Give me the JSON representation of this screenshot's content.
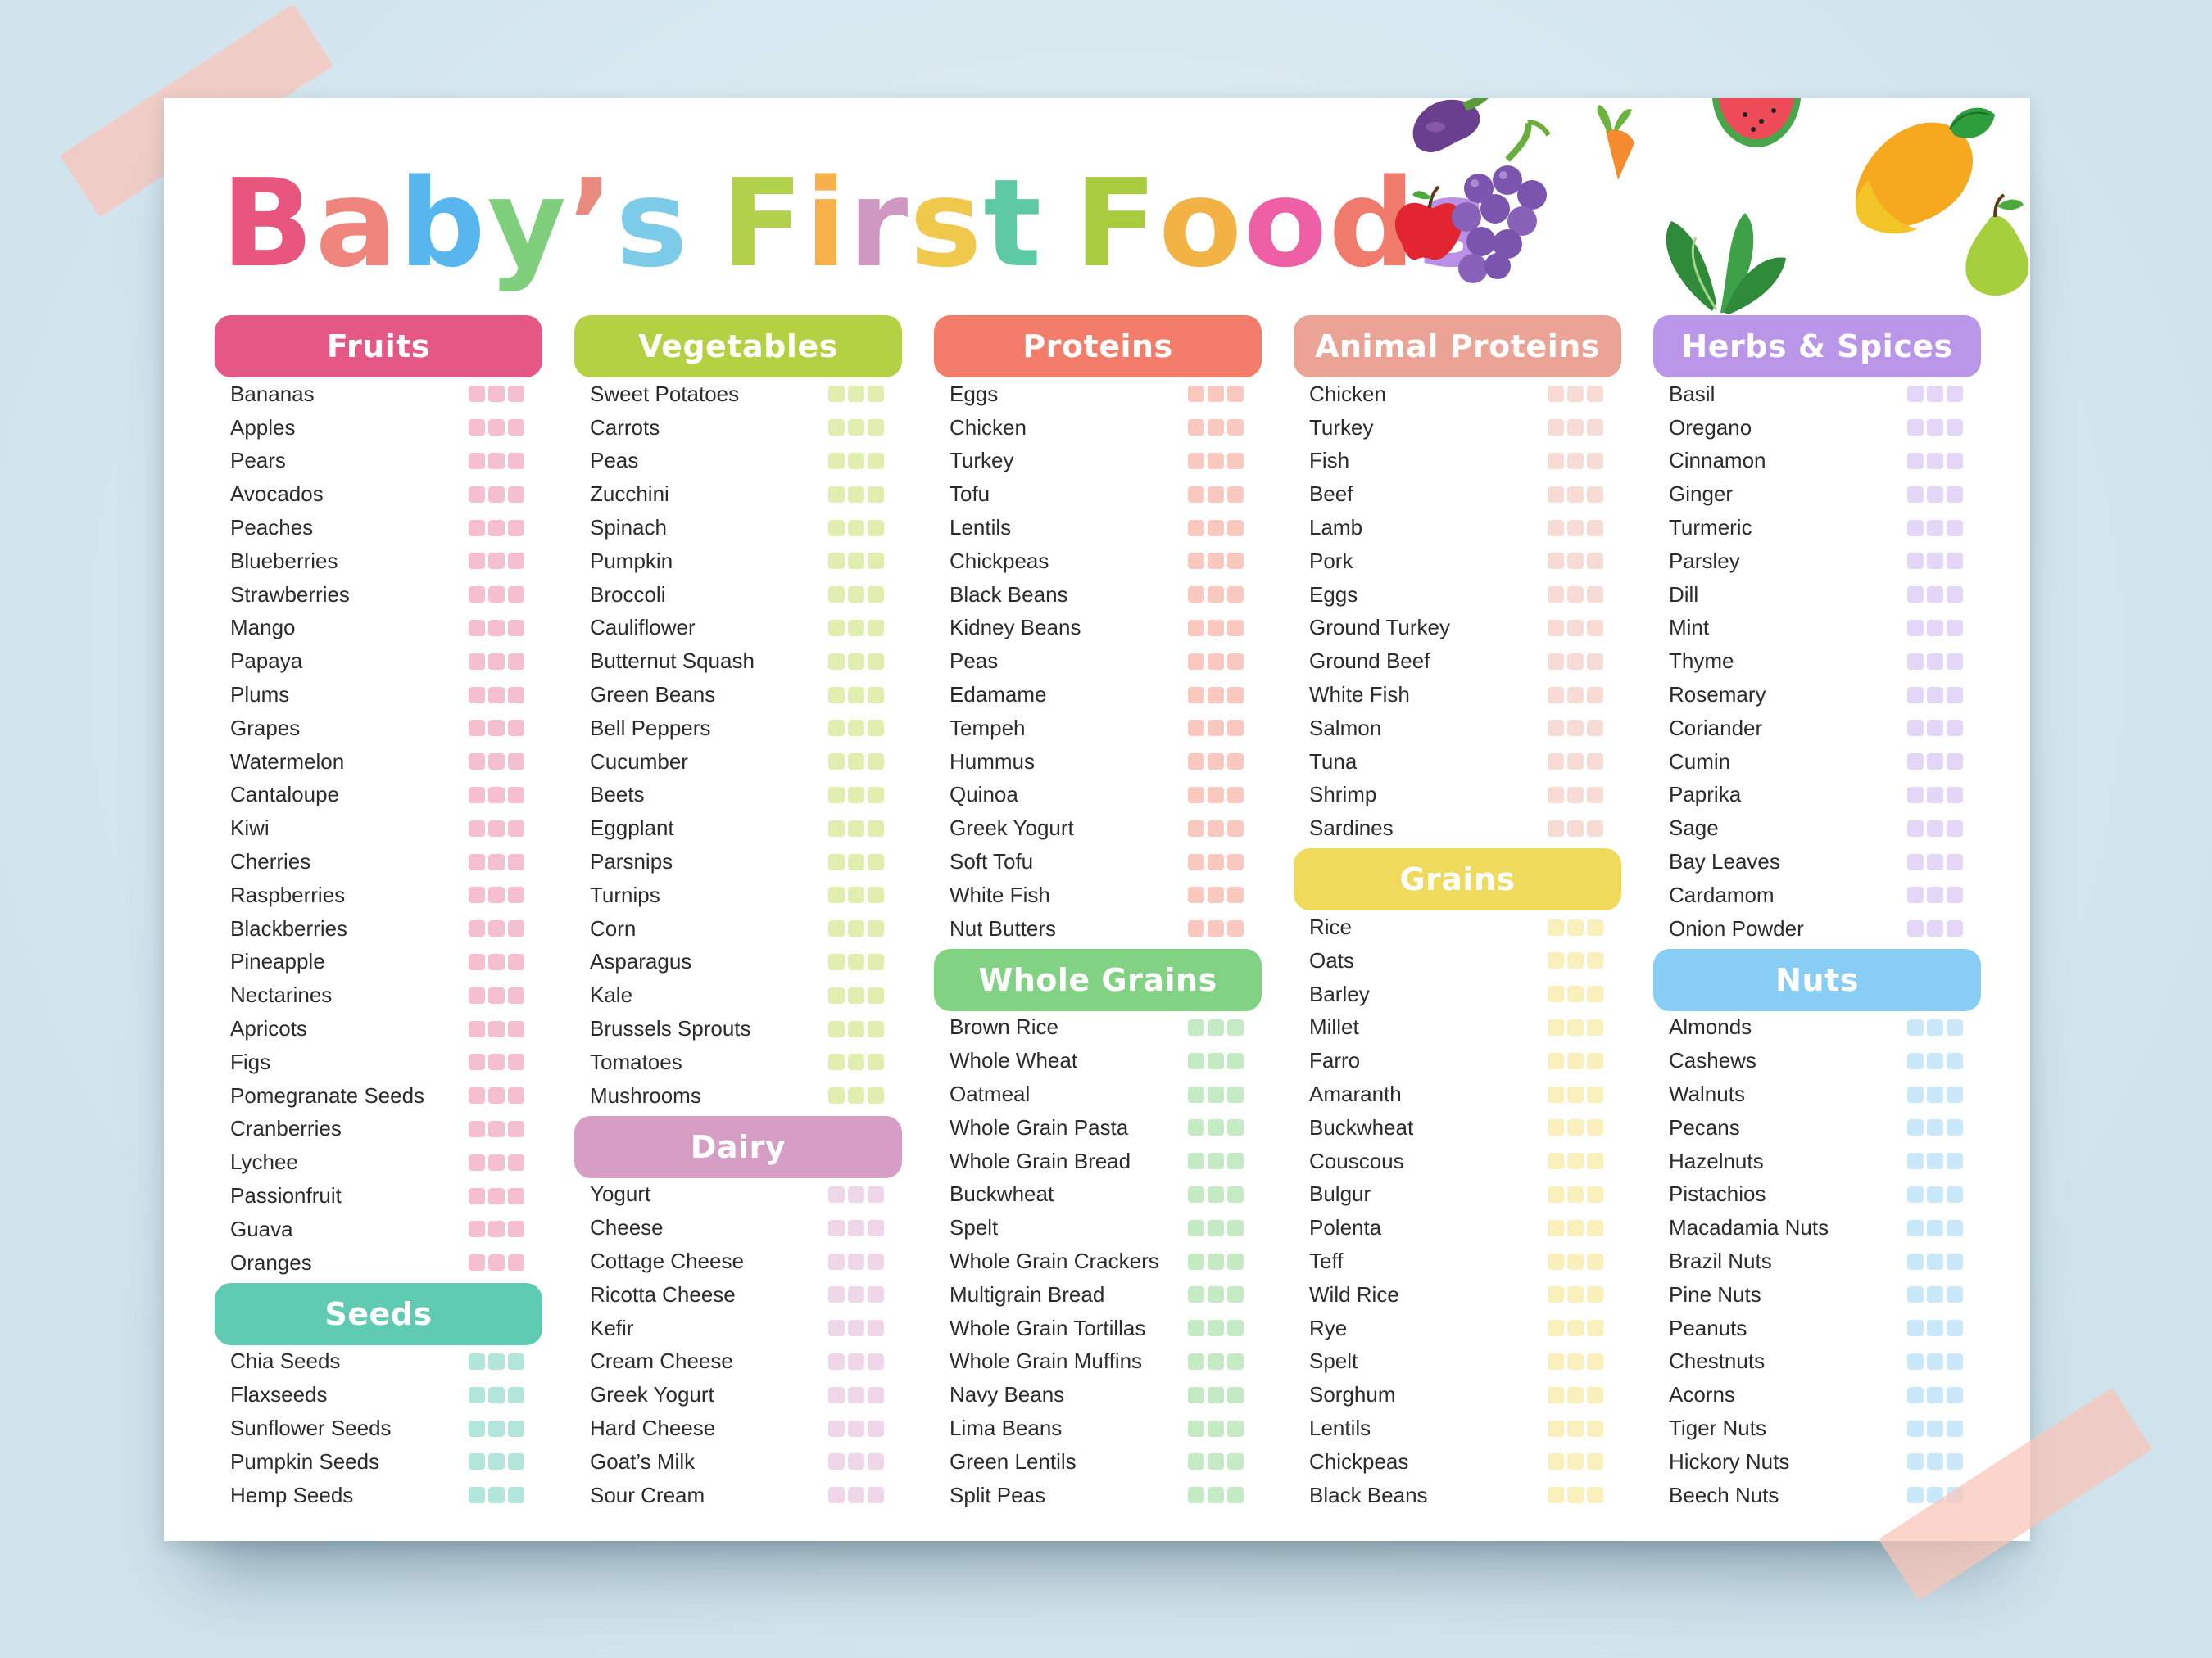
{
  "title": {
    "letters": [
      {
        "ch": "B",
        "color": "#e8567e"
      },
      {
        "ch": "a",
        "color": "#f0857e"
      },
      {
        "ch": "b",
        "color": "#58b6ee"
      },
      {
        "ch": "y",
        "color": "#7fcf7d"
      },
      {
        "ch": "’",
        "color": "#e98a7e"
      },
      {
        "ch": "s",
        "color": "#7ccbe8"
      },
      {
        "ch": " ",
        "color": "#ffffff"
      },
      {
        "ch": "F",
        "color": "#b2d24c"
      },
      {
        "ch": "i",
        "color": "#f6b14a"
      },
      {
        "ch": "r",
        "color": "#cf98c3"
      },
      {
        "ch": "s",
        "color": "#f0c94c"
      },
      {
        "ch": "t",
        "color": "#5ec9a5"
      },
      {
        "ch": " ",
        "color": "#ffffff"
      },
      {
        "ch": "F",
        "color": "#a8cc3e"
      },
      {
        "ch": "o",
        "color": "#f3b244"
      },
      {
        "ch": "o",
        "color": "#ef5fa5"
      },
      {
        "ch": "d",
        "color": "#f07a6b"
      },
      {
        "ch": "s",
        "color": "#b990e6"
      }
    ]
  },
  "illustrations": [
    "eggplant-icon",
    "carrot-icon",
    "watermelon-icon",
    "mango-icon",
    "apple-icon",
    "grapes-icon",
    "spinach-icon",
    "pear-icon"
  ],
  "columns": [
    {
      "sections": [
        {
          "name": "Fruits",
          "header_color": "#e55885",
          "box_color": "#f6bfd0",
          "items": [
            "Bananas",
            "Apples",
            "Pears",
            "Avocados",
            "Peaches",
            "Blueberries",
            "Strawberries",
            "Mango",
            "Papaya",
            "Plums",
            "Grapes",
            "Watermelon",
            "Cantaloupe",
            "Kiwi",
            "Cherries",
            "Raspberries",
            "Blackberries",
            "Pineapple",
            "Nectarines",
            "Apricots",
            "Figs",
            "Pomegranate Seeds",
            "Cranberries",
            "Lychee",
            "Passionfruit",
            "Guava",
            "Oranges"
          ]
        },
        {
          "name": "Seeds",
          "header_color": "#5ecbb2",
          "box_color": "#b3e6da",
          "items": [
            "Chia Seeds",
            "Flaxseeds",
            "Sunflower Seeds",
            "Pumpkin Seeds",
            "Hemp Seeds"
          ]
        }
      ]
    },
    {
      "sections": [
        {
          "name": "Vegetables",
          "header_color": "#b4d143",
          "box_color": "#e0eeb0",
          "items": [
            "Sweet Potatoes",
            "Carrots",
            "Peas",
            "Zucchini",
            "Spinach",
            "Pumpkin",
            "Broccoli",
            "Cauliflower",
            "Butternut Squash",
            "Green Beans",
            "Bell Peppers",
            "Cucumber",
            "Beets",
            "Eggplant",
            "Parsnips",
            "Turnips",
            "Corn",
            "Asparagus",
            "Kale",
            "Brussels Sprouts",
            "Tomatoes",
            "Mushrooms"
          ]
        },
        {
          "name": "Dairy",
          "header_color": "#d79ec5",
          "box_color": "#efd6e8",
          "items": [
            "Yogurt",
            "Cheese",
            "Cottage Cheese",
            "Ricotta Cheese",
            "Kefir",
            "Cream Cheese",
            "Greek Yogurt",
            "Hard Cheese",
            "Goat’s Milk",
            "Sour Cream"
          ]
        }
      ]
    },
    {
      "sections": [
        {
          "name": "Proteins",
          "header_color": "#f37d6a",
          "box_color": "#f9c8bf",
          "items": [
            "Eggs",
            "Chicken",
            "Turkey",
            "Tofu",
            "Lentils",
            "Chickpeas",
            "Black Beans",
            "Kidney Beans",
            "Peas",
            "Edamame",
            "Tempeh",
            "Hummus",
            "Quinoa",
            "Greek Yogurt",
            "Soft Tofu",
            "White Fish",
            "Nut Butters"
          ]
        },
        {
          "name": "Whole Grains",
          "header_color": "#82d284",
          "box_color": "#c5ebc5",
          "items": [
            "Brown Rice",
            "Whole Wheat",
            "Oatmeal",
            "Whole Grain Pasta",
            "Whole Grain Bread",
            "Buckwheat",
            "Spelt",
            "Whole Grain Crackers",
            "Multigrain Bread",
            "Whole Grain Tortillas",
            "Whole Grain Muffins",
            "Navy Beans",
            "Lima Beans",
            "Green Lentils",
            "Split Peas"
          ]
        }
      ]
    },
    {
      "sections": [
        {
          "name": "Animal Proteins",
          "header_color": "#eba395",
          "box_color": "#f7dcd6",
          "items": [
            "Chicken",
            "Turkey",
            "Fish",
            "Beef",
            "Lamb",
            "Pork",
            "Eggs",
            "Ground Turkey",
            "Ground Beef",
            "White Fish",
            "Salmon",
            "Tuna",
            "Shrimp",
            "Sardines"
          ]
        },
        {
          "name": "Grains",
          "header_color": "#efda5b",
          "box_color": "#f9f0bc",
          "items": [
            "Rice",
            "Oats",
            "Barley",
            "Millet",
            "Farro",
            "Amaranth",
            "Buckwheat",
            "Couscous",
            "Bulgur",
            "Polenta",
            "Teff",
            "Wild Rice",
            "Rye",
            "Spelt",
            "Sorghum",
            "Lentils",
            "Chickpeas",
            "Black Beans"
          ]
        }
      ]
    },
    {
      "sections": [
        {
          "name": "Herbs & Spices",
          "header_color": "#b996e8",
          "box_color": "#e4d6f7",
          "items": [
            "Basil",
            "Oregano",
            "Cinnamon",
            "Ginger",
            "Turmeric",
            "Parsley",
            "Dill",
            "Mint",
            "Thyme",
            "Rosemary",
            "Coriander",
            "Cumin",
            "Paprika",
            "Sage",
            "Bay Leaves",
            "Cardamom",
            "Onion Powder"
          ]
        },
        {
          "name": "Nuts",
          "header_color": "#87cdf4",
          "box_color": "#c9e8fa",
          "items": [
            "Almonds",
            "Cashews",
            "Walnuts",
            "Pecans",
            "Hazelnuts",
            "Pistachios",
            "Macadamia Nuts",
            "Brazil Nuts",
            "Pine Nuts",
            "Peanuts",
            "Chestnuts",
            "Acorns",
            "Tiger Nuts",
            "Hickory Nuts",
            "Beech Nuts"
          ]
        }
      ]
    }
  ]
}
